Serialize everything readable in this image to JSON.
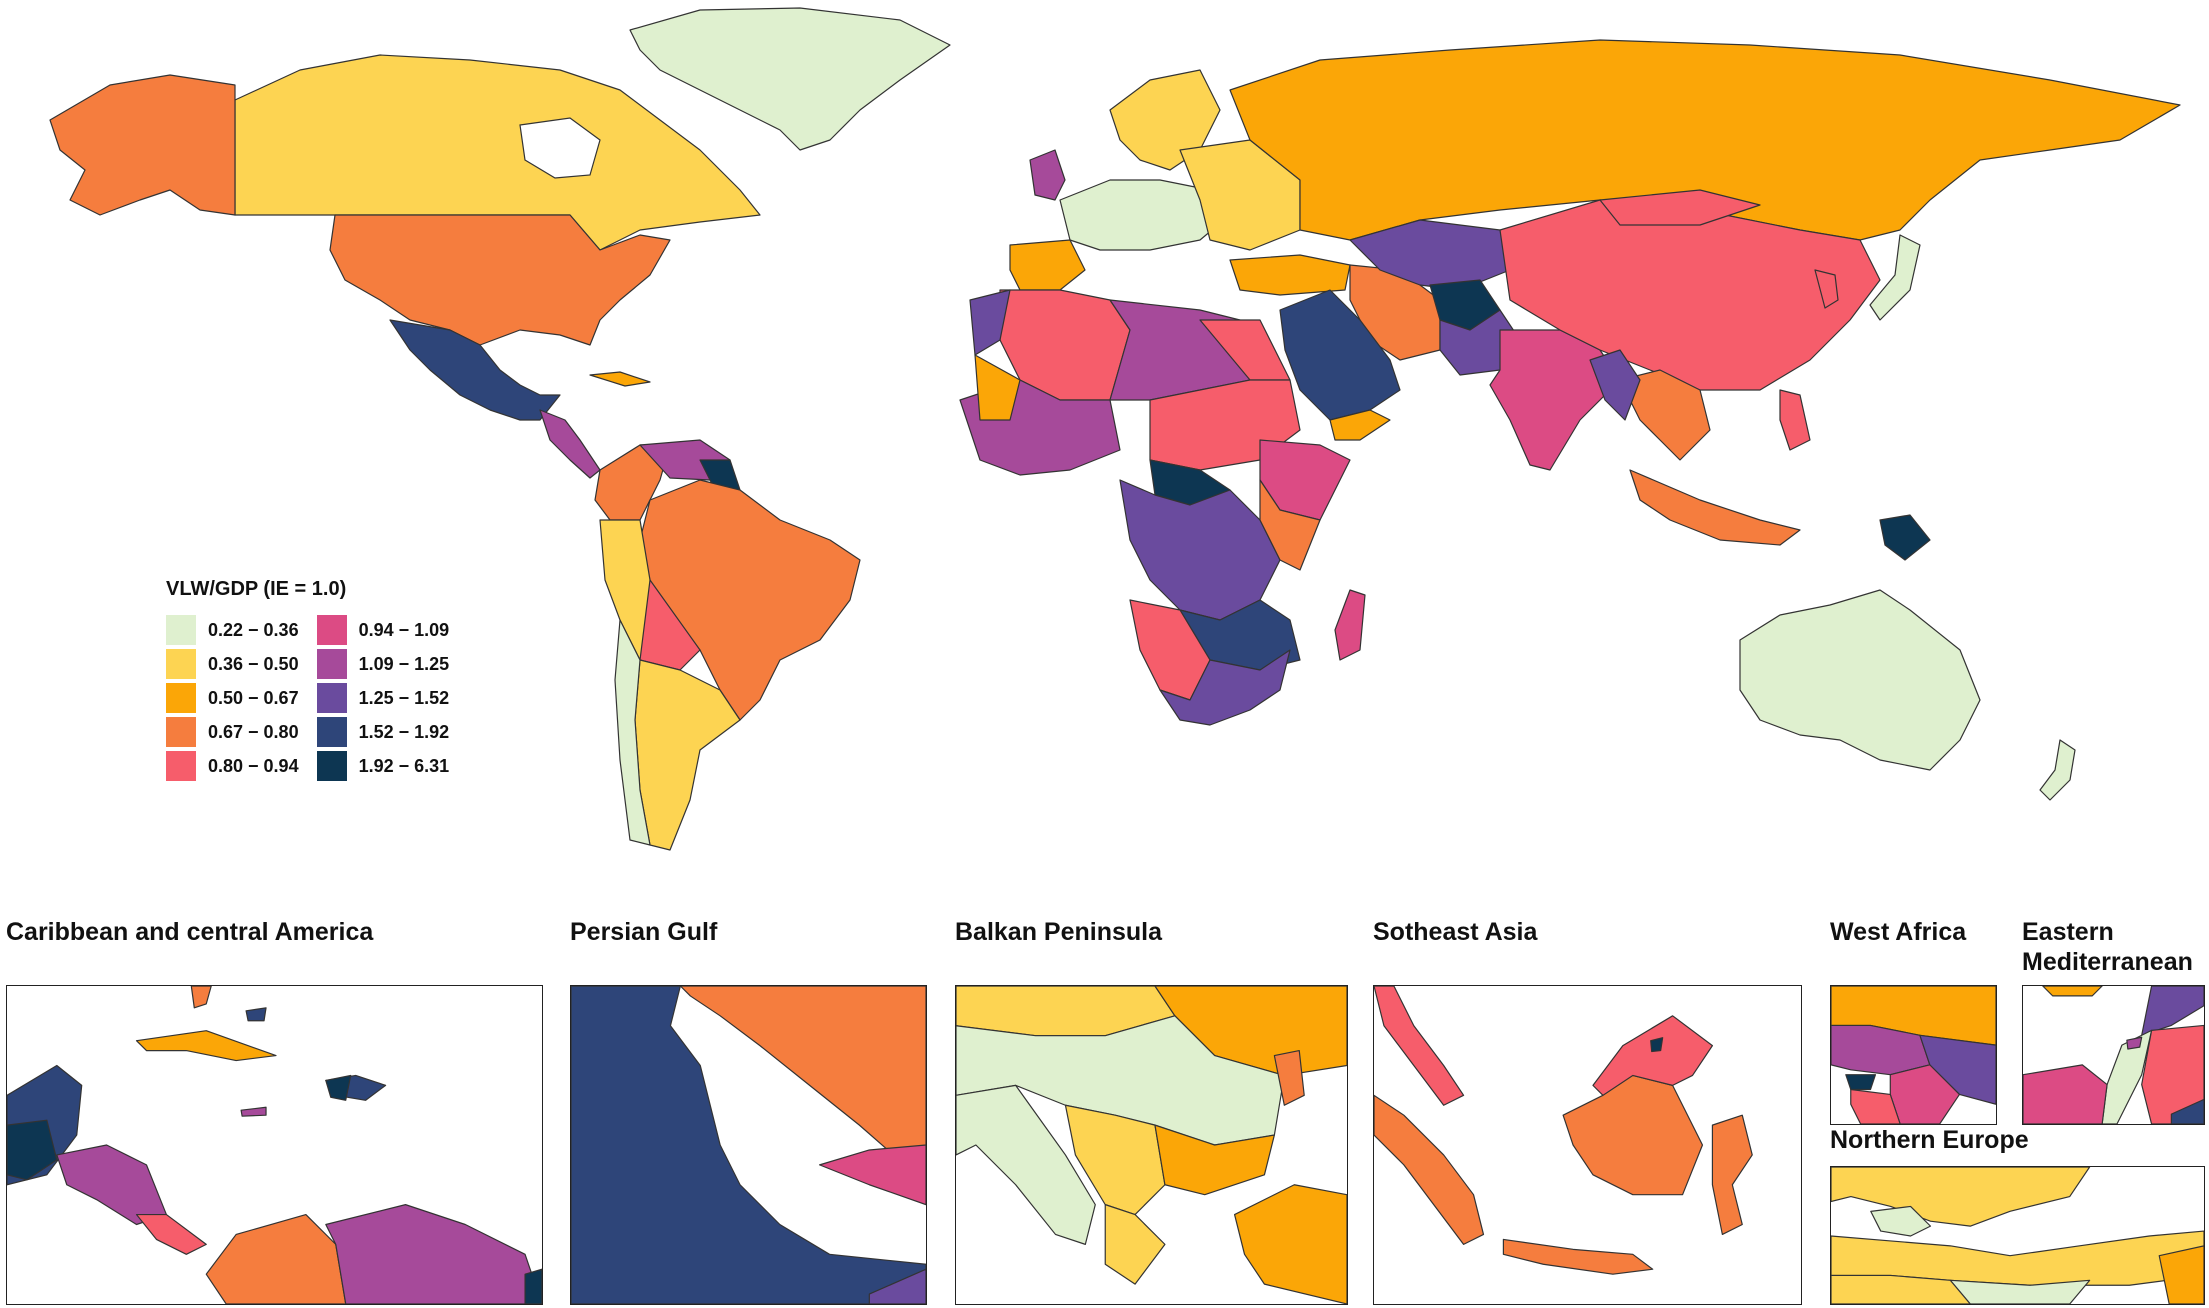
{
  "legend": {
    "title": "VLW/GDP (IE = 1.0)",
    "bins": [
      {
        "label": "0.22 − 0.36",
        "color": "#dff0cf"
      },
      {
        "label": "0.36 − 0.50",
        "color": "#fdd452"
      },
      {
        "label": "0.50 − 0.67",
        "color": "#fba607"
      },
      {
        "label": "0.67 − 0.80",
        "color": "#f57d3e"
      },
      {
        "label": "0.80 − 0.94",
        "color": "#f65d6b"
      },
      {
        "label": "0.94 − 1.09",
        "color": "#dc4b84"
      },
      {
        "label": "1.09 − 1.25",
        "color": "#a64a9a"
      },
      {
        "label": "1.25 − 1.52",
        "color": "#6a4b9e"
      },
      {
        "label": "1.52 − 1.92",
        "color": "#2e4579"
      },
      {
        "label": "1.92 − 6.31",
        "color": "#0d3652"
      }
    ]
  },
  "insets": [
    {
      "title": "Caribbean and central America"
    },
    {
      "title": "Persian Gulf"
    },
    {
      "title": "Balkan Peninsula"
    },
    {
      "title": "Sotheast Asia"
    },
    {
      "title": "West Africa"
    },
    {
      "title": "Eastern Mediterranean"
    },
    {
      "title": "Northern Europe"
    }
  ]
}
